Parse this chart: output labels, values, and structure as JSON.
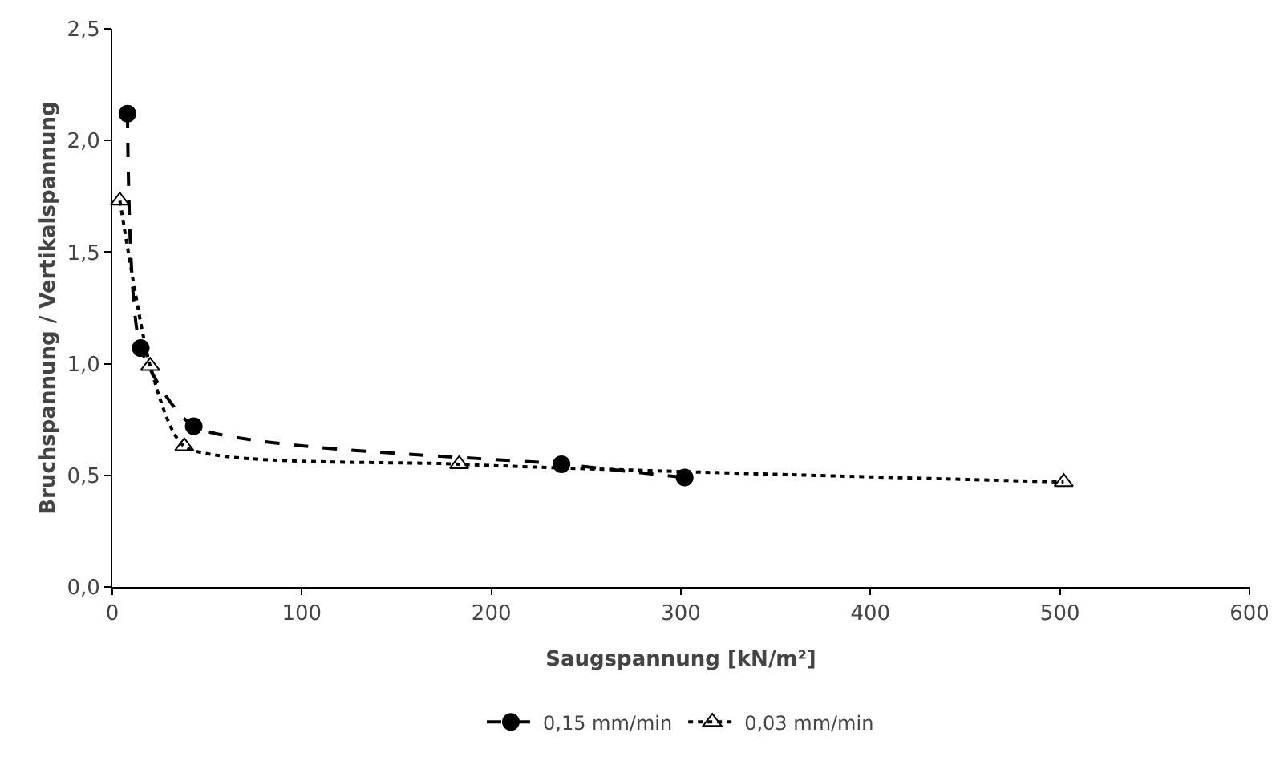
{
  "chart_data": {
    "type": "line",
    "xlabel": "Saugspannung [kN/m²]",
    "ylabel": "Bruchspannung / Vertikalspannung",
    "xlim": [
      0,
      600
    ],
    "xticks": [
      0,
      100,
      200,
      300,
      400,
      500,
      600
    ],
    "ylim": [
      0,
      2.5
    ],
    "yticks": [
      {
        "value": 0,
        "label": "0,0"
      },
      {
        "value": 0.5,
        "label": "0,5"
      },
      {
        "value": 1,
        "label": "1,0"
      },
      {
        "value": 1.5,
        "label": "1,5"
      },
      {
        "value": 2,
        "label": "2,0"
      },
      {
        "value": 2.5,
        "label": "2,5"
      }
    ],
    "grid": false,
    "legend": "bottom",
    "series": [
      {
        "name": "0,15 mm/min",
        "color": "#000000",
        "marker": "circle",
        "line_style": "dashed",
        "x": [
          8,
          15,
          43,
          237,
          302
        ],
        "values": [
          2.12,
          1.07,
          0.72,
          0.55,
          0.49
        ]
      },
      {
        "name": "0,03 mm/min",
        "color": "#000000",
        "marker": "triangle",
        "line_style": "dotted",
        "x": [
          4,
          20,
          38,
          183,
          502
        ],
        "values": [
          1.73,
          0.99,
          0.63,
          0.55,
          0.47
        ]
      }
    ]
  }
}
